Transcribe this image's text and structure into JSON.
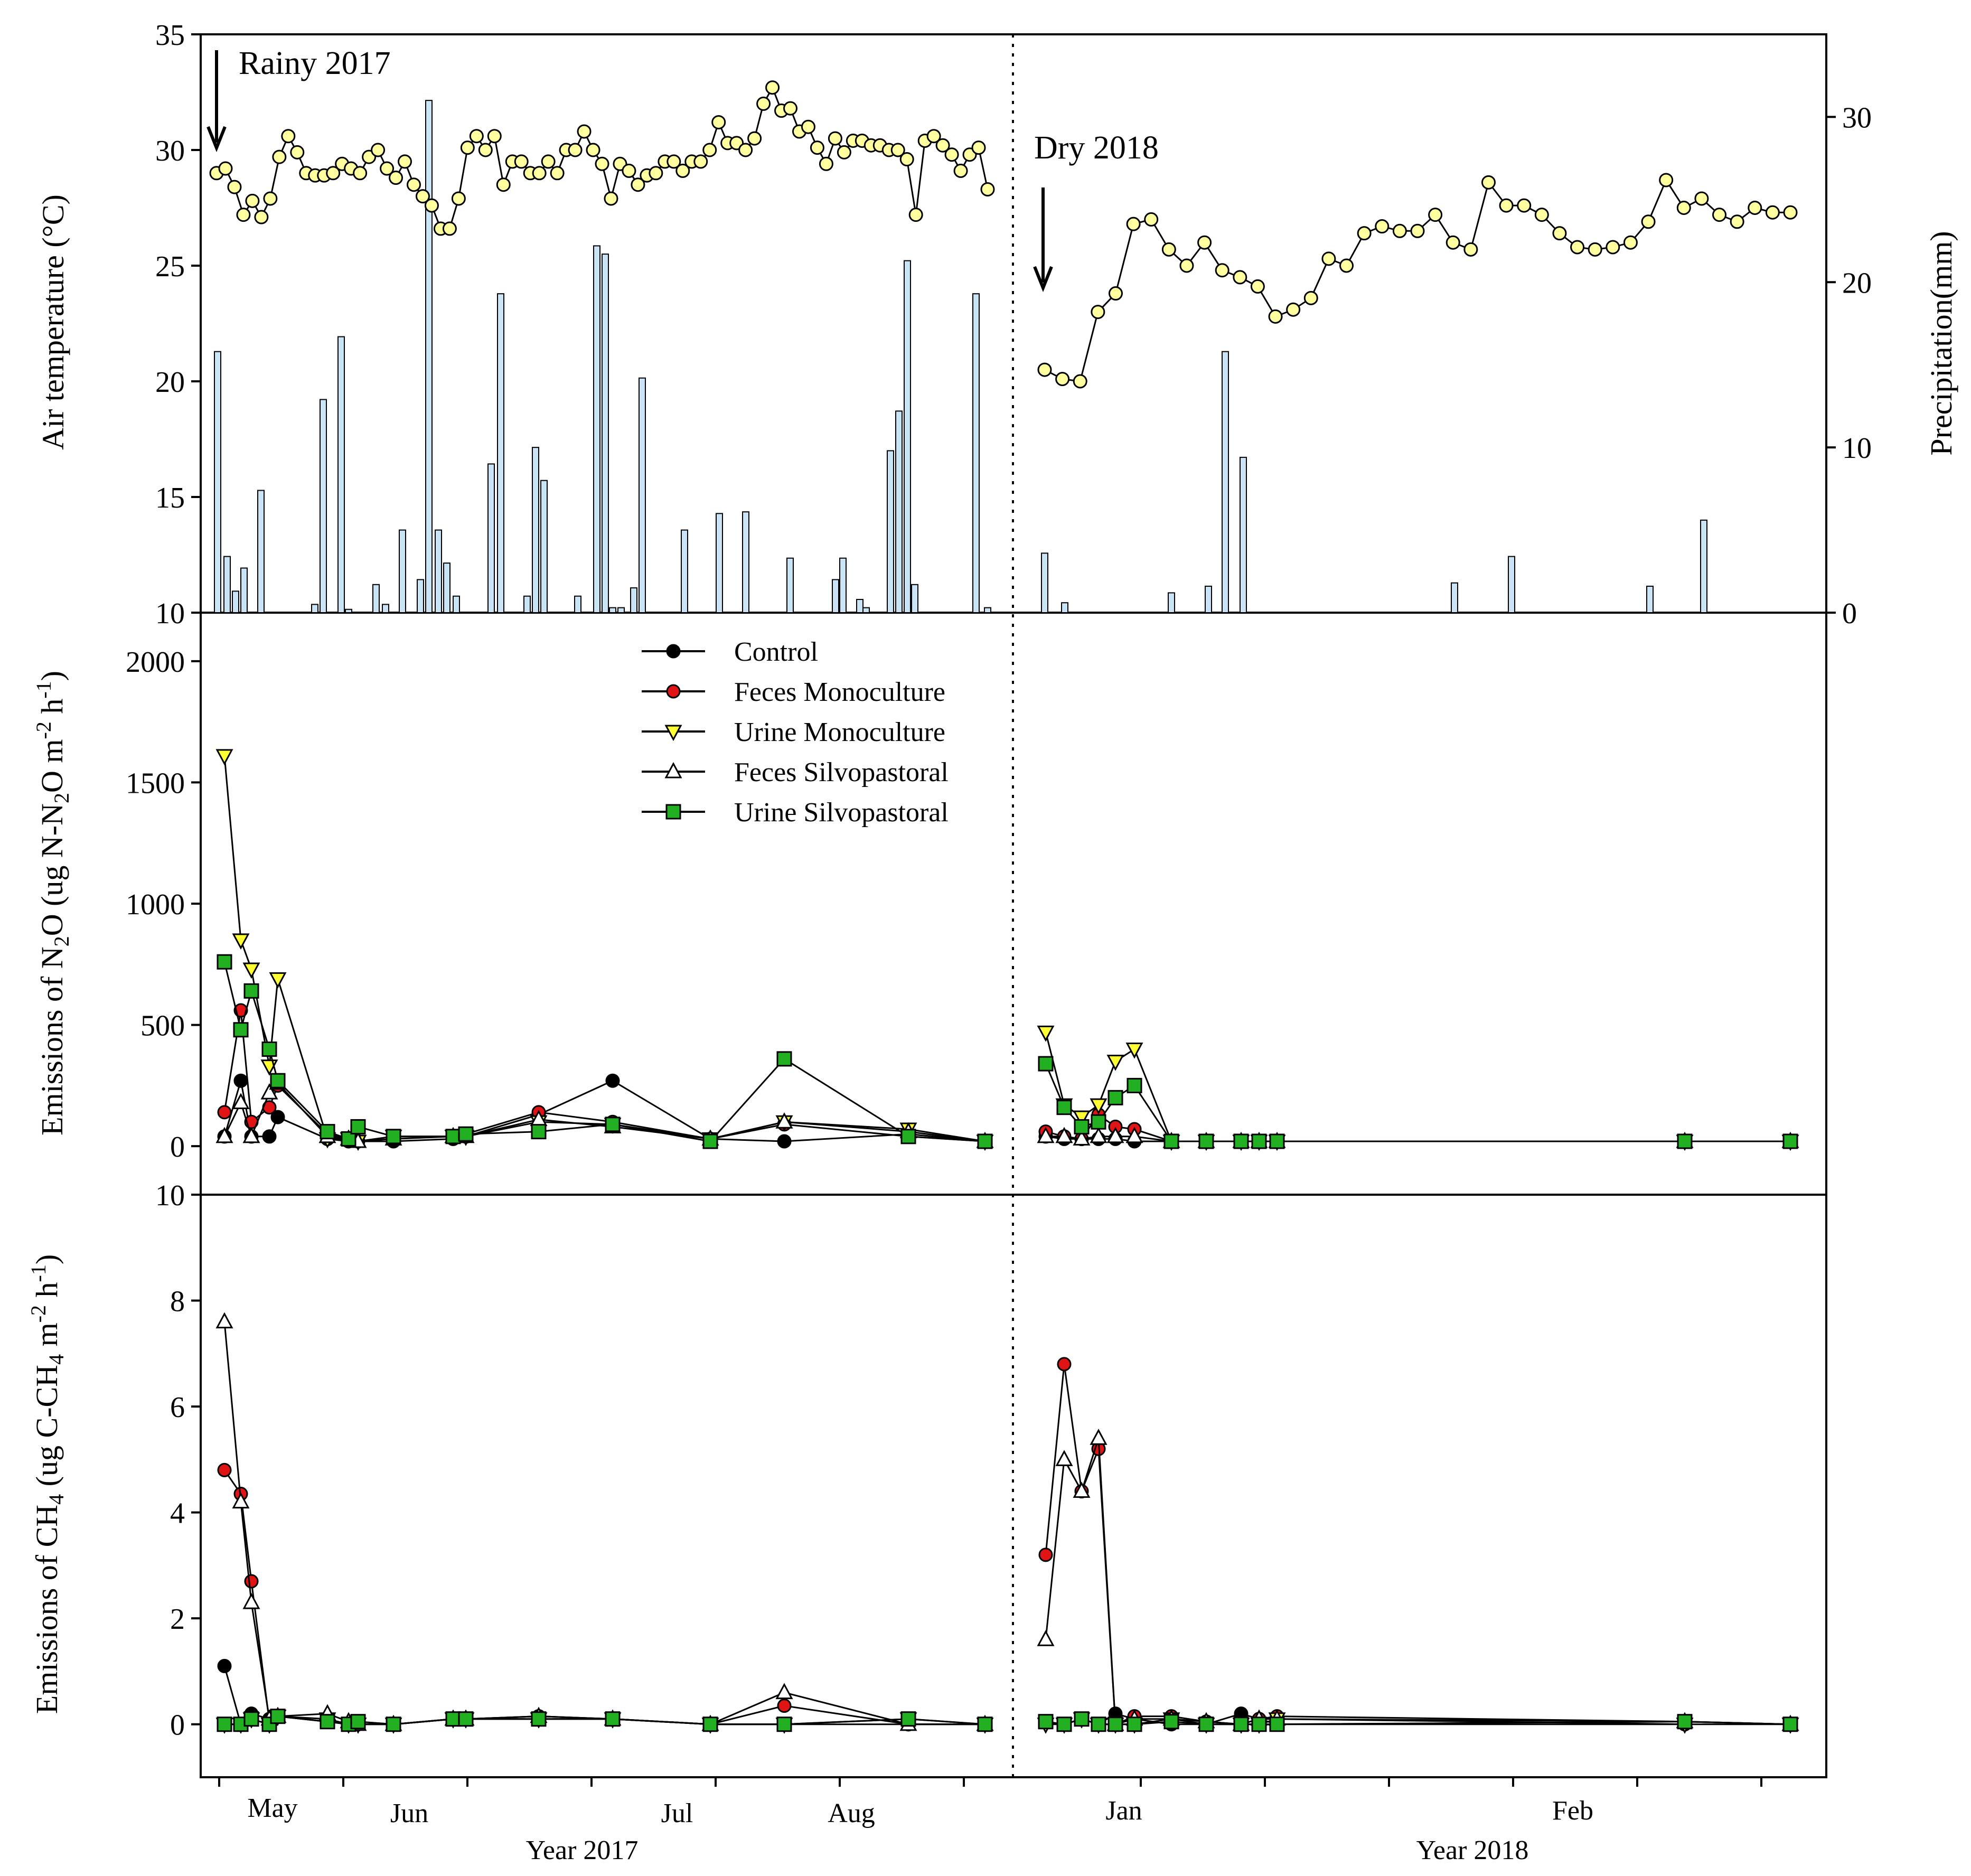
{
  "chart_data": [
    {
      "type": "line",
      "panel": "top",
      "ylabel": "Air temperature (°C)",
      "y2label": "Precipitation(mm)",
      "ylim": [
        10,
        35
      ],
      "y2lim": [
        0,
        35
      ],
      "yticks": [
        10,
        15,
        20,
        25,
        30,
        35
      ],
      "y2ticks": [
        0,
        10,
        20,
        30
      ],
      "annotations": [
        "Rainy 2017",
        "Dry 2018"
      ],
      "series": [
        {
          "name": "Air temperature",
          "period": "rainy",
          "values": [
            29.0,
            29.2,
            28.4,
            27.2,
            27.8,
            27.1,
            27.9,
            29.7,
            30.6,
            29.9,
            29.0,
            28.9,
            28.9,
            29.0,
            29.4,
            29.2,
            29.0,
            29.7,
            30.0,
            29.2,
            28.8,
            29.5,
            28.5,
            28.0,
            27.6,
            26.6,
            26.6,
            27.9,
            30.1,
            30.6,
            30.0,
            30.6,
            28.5,
            29.5,
            29.5,
            29.0,
            29.0,
            29.5,
            29.0,
            30.0,
            30.0,
            30.8,
            30.0,
            29.4,
            27.9,
            29.4,
            29.1,
            28.5,
            28.9,
            29.0,
            29.5,
            29.5,
            29.1,
            29.5,
            29.5,
            30.0,
            31.2,
            30.3,
            30.3,
            30.0,
            30.5,
            32.0,
            32.7,
            31.7,
            31.8,
            30.8,
            31.0,
            30.1,
            29.4,
            30.5,
            29.9,
            30.4,
            30.4,
            30.2,
            30.2,
            30.0,
            30.0,
            29.6,
            27.2,
            30.4,
            30.6,
            30.2,
            29.8,
            29.1,
            29.8,
            30.1,
            28.3
          ]
        },
        {
          "name": "Air temperature",
          "period": "dry",
          "values": [
            20.5,
            20.1,
            20.0,
            23.0,
            23.8,
            26.8,
            27.0,
            25.7,
            25.0,
            26.0,
            24.8,
            24.5,
            24.1,
            22.8,
            23.1,
            23.6,
            25.3,
            25.0,
            26.4,
            26.7,
            26.5,
            26.5,
            27.2,
            26.0,
            25.7,
            28.6,
            27.6,
            27.6,
            27.2,
            26.4,
            25.8,
            25.7,
            25.8,
            26.0,
            26.9,
            28.7,
            27.5,
            27.9,
            27.2,
            26.9,
            27.5,
            27.3,
            27.3
          ]
        },
        {
          "name": "Precipitation",
          "type": "bar",
          "period": "rainy",
          "values": [
            15.8,
            3.4,
            1.3,
            2.7,
            7.4,
            0.5,
            12.9,
            16.7,
            0.2,
            1.7,
            0.5,
            5.0,
            2.0,
            31.0,
            5.0,
            3.0,
            1.0,
            9.0,
            19.3,
            1.0,
            10.0,
            8.0,
            1.0,
            22.2,
            21.7,
            0.3,
            0.3,
            1.5,
            14.2,
            5.0,
            6.0,
            6.1,
            3.3,
            2.0,
            3.3,
            0.8,
            0.3,
            9.8,
            12.2,
            21.3,
            1.7,
            19.3,
            0.3
          ]
        },
        {
          "name": "Precipitation",
          "type": "bar",
          "period": "dry",
          "values": [
            3.6,
            0.6,
            1.2,
            1.6,
            15.8,
            9.4,
            1.8,
            3.4,
            1.6,
            5.6
          ]
        }
      ]
    },
    {
      "type": "line",
      "panel": "middle",
      "ylabel": "Emissions of N2O (ug N-N2O m-2 h-1)",
      "ylim": [
        -200,
        2200
      ],
      "yticks": [
        0,
        500,
        1000,
        1500,
        2000
      ],
      "legend": [
        "Control",
        "Feces Monoculture",
        "Urine Monoculture",
        "Feces Silvopastoral",
        "Urine Silvopastoral"
      ],
      "series": [
        {
          "name": "Control",
          "values": [
            40,
            270,
            40,
            40,
            120,
            30,
            20,
            20,
            20,
            30,
            40,
            130,
            270,
            30,
            20,
            50,
            20,
            40,
            30,
            30,
            30,
            30,
            20,
            20,
            20,
            20,
            20,
            20,
            20,
            20
          ]
        },
        {
          "name": "Feces Monoculture",
          "values": [
            140,
            560,
            100,
            160,
            250,
            50,
            30,
            20,
            40,
            40,
            50,
            140,
            100,
            30,
            90,
            40,
            20,
            60,
            40,
            30,
            130,
            80,
            70,
            20,
            20,
            20,
            20,
            20,
            20,
            20
          ]
        },
        {
          "name": "Urine Monoculture",
          "values": [
            1610,
            850,
            730,
            330,
            690,
            30,
            30,
            20,
            40,
            40,
            40,
            100,
            90,
            30,
            100,
            70,
            20,
            470,
            170,
            120,
            170,
            350,
            400,
            20,
            20,
            20,
            20,
            20,
            20,
            20
          ]
        },
        {
          "name": "Feces Silvopastoral",
          "values": [
            40,
            180,
            40,
            220,
            260,
            40,
            30,
            20,
            30,
            40,
            40,
            110,
            80,
            30,
            100,
            60,
            20,
            40,
            40,
            30,
            40,
            40,
            40,
            20,
            20,
            20,
            20,
            20,
            20,
            20
          ]
        },
        {
          "name": "Urine Silvopastoral",
          "values": [
            760,
            480,
            640,
            400,
            270,
            60,
            30,
            80,
            40,
            40,
            50,
            60,
            90,
            20,
            360,
            40,
            20,
            340,
            160,
            80,
            100,
            200,
            250,
            20,
            20,
            20,
            20,
            20,
            20,
            20
          ]
        }
      ]
    },
    {
      "type": "line",
      "panel": "bottom",
      "ylabel": "Emissions of CH4 (ug C-CH4 m-2 h-1)",
      "ylim": [
        -1,
        10
      ],
      "yticks": [
        0,
        2,
        4,
        6,
        8,
        10
      ],
      "xlabel": [
        "Year 2017",
        "Year 2018"
      ],
      "xticklabels": [
        "May",
        "Jun",
        "Jul",
        "Aug",
        "Jan",
        "Feb"
      ],
      "series": [
        {
          "name": "Control",
          "values": [
            1.1,
            0.0,
            0.2,
            0.1,
            0.15,
            0.05,
            0.0,
            0.0,
            0.0,
            0.1,
            0.1,
            0.15,
            0.1,
            0.0,
            0.0,
            0.0,
            0.0,
            0.05,
            0.0,
            0.1,
            0.0,
            0.2,
            0.1,
            0.0,
            0.0,
            0.2,
            0.1,
            0.0,
            0.0
          ]
        },
        {
          "name": "Feces Monoculture",
          "values": [
            4.8,
            4.35,
            2.7,
            0.05,
            0.15,
            0.05,
            0.0,
            0.05,
            0.0,
            0.1,
            0.1,
            0.15,
            0.1,
            0.0,
            0.35,
            0.0,
            0.0,
            3.2,
            6.8,
            4.4,
            5.2,
            0.0,
            0.15,
            0.15,
            0.05,
            0.0,
            0.1,
            0.15,
            0.05,
            0.0
          ]
        },
        {
          "name": "Urine Monoculture",
          "values": [
            0.0,
            0.0,
            0.1,
            0.0,
            0.15,
            0.1,
            0.0,
            0.0,
            0.0,
            0.1,
            0.1,
            0.1,
            0.1,
            0.0,
            0.0,
            0.1,
            0.0,
            0.0,
            0.0,
            0.1,
            0.0,
            0.0,
            0.0,
            0.1,
            0.0,
            0.0,
            0.0,
            0.1,
            0.0,
            0.0
          ]
        },
        {
          "name": "Feces Silvopastoral",
          "values": [
            7.6,
            4.2,
            2.3,
            0.1,
            0.15,
            0.2,
            0.05,
            0.0,
            0.0,
            0.1,
            0.1,
            0.15,
            0.1,
            0.0,
            0.6,
            0.0,
            0.0,
            1.6,
            5.0,
            4.4,
            5.4,
            0.0,
            0.1,
            0.1,
            0.05,
            0.0,
            0.1,
            0.1,
            0.05,
            0.0
          ]
        },
        {
          "name": "Urine Silvopastoral",
          "values": [
            0.0,
            0.0,
            0.1,
            0.0,
            0.15,
            0.05,
            0.0,
            0.05,
            0.0,
            0.1,
            0.1,
            0.1,
            0.1,
            0.0,
            0.0,
            0.1,
            0.0,
            0.05,
            0.0,
            0.1,
            0.0,
            0.0,
            0.0,
            0.05,
            0.0,
            0.0,
            0.0,
            0.0,
            0.05,
            0.0
          ]
        }
      ]
    }
  ]
}
